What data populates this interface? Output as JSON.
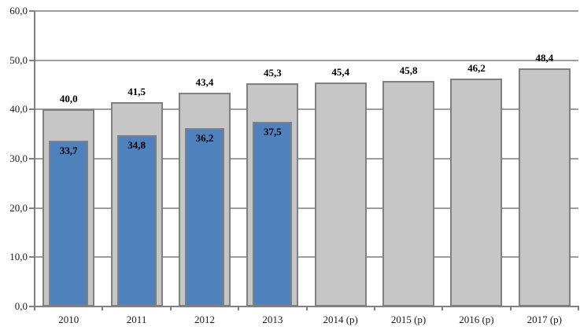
{
  "chart_data": {
    "type": "bar",
    "title": "",
    "xlabel": "",
    "ylabel": "",
    "categories": [
      "2010",
      "2011",
      "2012",
      "2013",
      "2014 (p)",
      "2015 (p)",
      "2016 (p)",
      "2017 (p)"
    ],
    "series": [
      {
        "name": "total-bar",
        "fill": "#C6C6C6",
        "border": "#808080",
        "values": [
          40.0,
          41.5,
          43.4,
          45.3,
          45.4,
          45.8,
          46.2,
          48.4
        ],
        "labels": [
          "40,0",
          "41,5",
          "43,4",
          "45,3",
          "45,4",
          "45,8",
          "46,2",
          "48,4"
        ]
      },
      {
        "name": "highlighted-subset-bar",
        "fill": "#4F81BD",
        "border": "#808080",
        "values": [
          33.7,
          34.8,
          36.2,
          37.5,
          null,
          null,
          null,
          null
        ],
        "labels": [
          "33,7",
          "34,8",
          "36,2",
          "37,5",
          null,
          null,
          null,
          null
        ]
      }
    ],
    "ylim": [
      0,
      60
    ],
    "ytick_step": 10,
    "ytick_labels": [
      "0,0",
      "10,0",
      "20,0",
      "30,0",
      "40,0",
      "50,0",
      "60,0"
    ],
    "grid": true,
    "legend": false,
    "colors": {
      "background": "#FFFFFF",
      "gridline": "#9D9D9D",
      "axis": "#808080",
      "text": "#1A1A1A"
    }
  }
}
